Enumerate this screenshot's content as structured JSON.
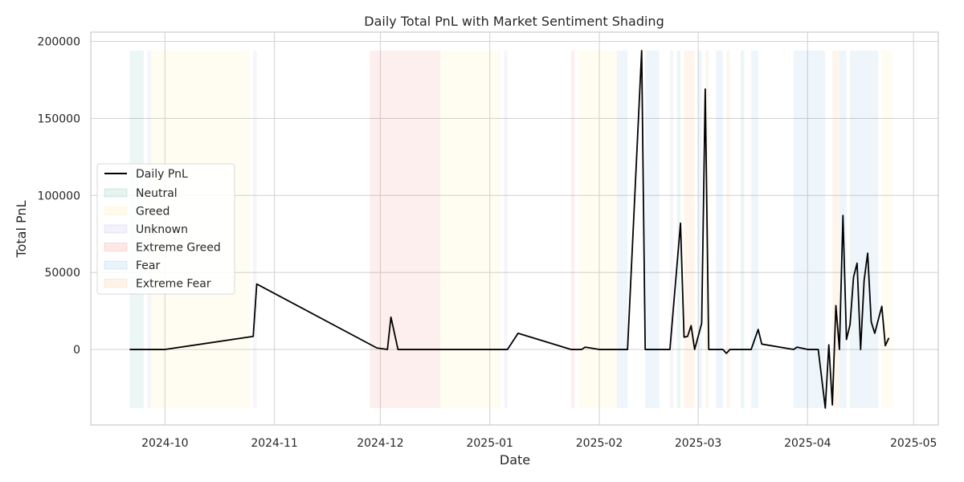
{
  "chart_data": {
    "type": "line",
    "title": "Daily Total PnL with Market Sentiment Shading",
    "xlabel": "Date",
    "ylabel": "Total PnL",
    "xlim": [
      "2024-09-10",
      "2025-05-08"
    ],
    "ylim": [
      -49000,
      206000
    ],
    "x_ticks": [
      "2024-10-01",
      "2024-11-01",
      "2024-12-01",
      "2025-01-01",
      "2025-02-01",
      "2025-03-01",
      "2025-04-01",
      "2025-05-01"
    ],
    "x_tick_labels": [
      "2024-10",
      "2024-11",
      "2024-12",
      "2025-01",
      "2025-02",
      "2025-03",
      "2025-04",
      "2025-05"
    ],
    "y_ticks": [
      0,
      50000,
      100000,
      150000,
      200000
    ],
    "y_tick_labels": [
      "0",
      "50000",
      "100000",
      "150000",
      "200000"
    ],
    "grid": true,
    "legend_position": "center-left",
    "series": [
      {
        "name": "Daily PnL",
        "color": "#000000",
        "points": [
          [
            "2024-09-21",
            0
          ],
          [
            "2024-10-01",
            0
          ],
          [
            "2024-10-26",
            8500
          ],
          [
            "2024-10-27",
            42500
          ],
          [
            "2024-11-30",
            1000
          ],
          [
            "2024-12-03",
            0
          ],
          [
            "2024-12-04",
            21000
          ],
          [
            "2024-12-06",
            0
          ],
          [
            "2025-01-06",
            0
          ],
          [
            "2025-01-09",
            10500
          ],
          [
            "2025-01-24",
            0
          ],
          [
            "2025-01-27",
            0
          ],
          [
            "2025-01-28",
            1500
          ],
          [
            "2025-02-01",
            0
          ],
          [
            "2025-02-09",
            0
          ],
          [
            "2025-02-13",
            194000
          ],
          [
            "2025-02-14",
            0
          ],
          [
            "2025-02-21",
            0
          ],
          [
            "2025-02-24",
            82000
          ],
          [
            "2025-02-25",
            8000
          ],
          [
            "2025-02-26",
            8500
          ],
          [
            "2025-02-27",
            15500
          ],
          [
            "2025-02-28",
            0
          ],
          [
            "2025-03-02",
            17000
          ],
          [
            "2025-03-03",
            169000
          ],
          [
            "2025-03-04",
            0
          ],
          [
            "2025-03-08",
            0
          ],
          [
            "2025-03-09",
            -2500
          ],
          [
            "2025-03-10",
            0
          ],
          [
            "2025-03-16",
            0
          ],
          [
            "2025-03-18",
            13000
          ],
          [
            "2025-03-19",
            3500
          ],
          [
            "2025-03-28",
            0
          ],
          [
            "2025-03-29",
            1500
          ],
          [
            "2025-04-01",
            0
          ],
          [
            "2025-04-04",
            0
          ],
          [
            "2025-04-06",
            -38000
          ],
          [
            "2025-04-07",
            3000
          ],
          [
            "2025-04-08",
            -36000
          ],
          [
            "2025-04-09",
            28500
          ],
          [
            "2025-04-10",
            0
          ],
          [
            "2025-04-11",
            87000
          ],
          [
            "2025-04-12",
            6500
          ],
          [
            "2025-04-13",
            16000
          ],
          [
            "2025-04-14",
            47000
          ],
          [
            "2025-04-15",
            56000
          ],
          [
            "2025-04-16",
            0
          ],
          [
            "2025-04-17",
            45000
          ],
          [
            "2025-04-18",
            62500
          ],
          [
            "2025-04-19",
            18000
          ],
          [
            "2025-04-20",
            10500
          ],
          [
            "2025-04-22",
            28000
          ],
          [
            "2025-04-23",
            2500
          ],
          [
            "2025-04-24",
            7500
          ]
        ]
      }
    ],
    "sentiment_categories": [
      {
        "name": "Neutral",
        "color": "#2a9d8f"
      },
      {
        "name": "Greed",
        "color": "#ffe066"
      },
      {
        "name": "Unknown",
        "color": "#9b8fd6"
      },
      {
        "name": "Extreme Greed",
        "color": "#e74c3c"
      },
      {
        "name": "Fear",
        "color": "#4a9fd4"
      },
      {
        "name": "Extreme Fear",
        "color": "#f39c3c"
      }
    ],
    "shading_range": [
      -38000,
      194000
    ],
    "sentiment_spans": [
      {
        "start": "2024-09-21",
        "end": "2024-09-25",
        "sentiment": "Neutral"
      },
      {
        "start": "2024-09-26",
        "end": "2024-09-27",
        "sentiment": "Unknown"
      },
      {
        "start": "2024-09-27",
        "end": "2024-10-25",
        "sentiment": "Greed"
      },
      {
        "start": "2024-10-26",
        "end": "2024-10-27",
        "sentiment": "Unknown"
      },
      {
        "start": "2024-11-28",
        "end": "2024-12-18",
        "sentiment": "Extreme Greed"
      },
      {
        "start": "2024-12-18",
        "end": "2025-01-04",
        "sentiment": "Greed"
      },
      {
        "start": "2025-01-05",
        "end": "2025-01-06",
        "sentiment": "Unknown"
      },
      {
        "start": "2025-01-24",
        "end": "2025-01-25",
        "sentiment": "Extreme Greed"
      },
      {
        "start": "2025-01-26",
        "end": "2025-02-06",
        "sentiment": "Greed"
      },
      {
        "start": "2025-02-06",
        "end": "2025-02-09",
        "sentiment": "Fear"
      },
      {
        "start": "2025-02-14",
        "end": "2025-02-18",
        "sentiment": "Fear"
      },
      {
        "start": "2025-02-21",
        "end": "2025-02-22",
        "sentiment": "Unknown"
      },
      {
        "start": "2025-02-23",
        "end": "2025-02-24",
        "sentiment": "Neutral"
      },
      {
        "start": "2025-02-25",
        "end": "2025-02-28",
        "sentiment": "Extreme Fear"
      },
      {
        "start": "2025-03-01",
        "end": "2025-03-02",
        "sentiment": "Fear"
      },
      {
        "start": "2025-03-03",
        "end": "2025-03-04",
        "sentiment": "Extreme Fear"
      },
      {
        "start": "2025-03-06",
        "end": "2025-03-08",
        "sentiment": "Fear"
      },
      {
        "start": "2025-03-09",
        "end": "2025-03-10",
        "sentiment": "Extreme Fear"
      },
      {
        "start": "2025-03-13",
        "end": "2025-03-14",
        "sentiment": "Neutral"
      },
      {
        "start": "2025-03-16",
        "end": "2025-03-18",
        "sentiment": "Fear"
      },
      {
        "start": "2025-03-28",
        "end": "2025-04-06",
        "sentiment": "Fear"
      },
      {
        "start": "2025-04-08",
        "end": "2025-04-10",
        "sentiment": "Extreme Fear"
      },
      {
        "start": "2025-04-10",
        "end": "2025-04-12",
        "sentiment": "Fear"
      },
      {
        "start": "2025-04-13",
        "end": "2025-04-14",
        "sentiment": "Neutral"
      },
      {
        "start": "2025-04-14",
        "end": "2025-04-21",
        "sentiment": "Fear"
      },
      {
        "start": "2025-04-22",
        "end": "2025-04-25",
        "sentiment": "Greed"
      }
    ]
  }
}
